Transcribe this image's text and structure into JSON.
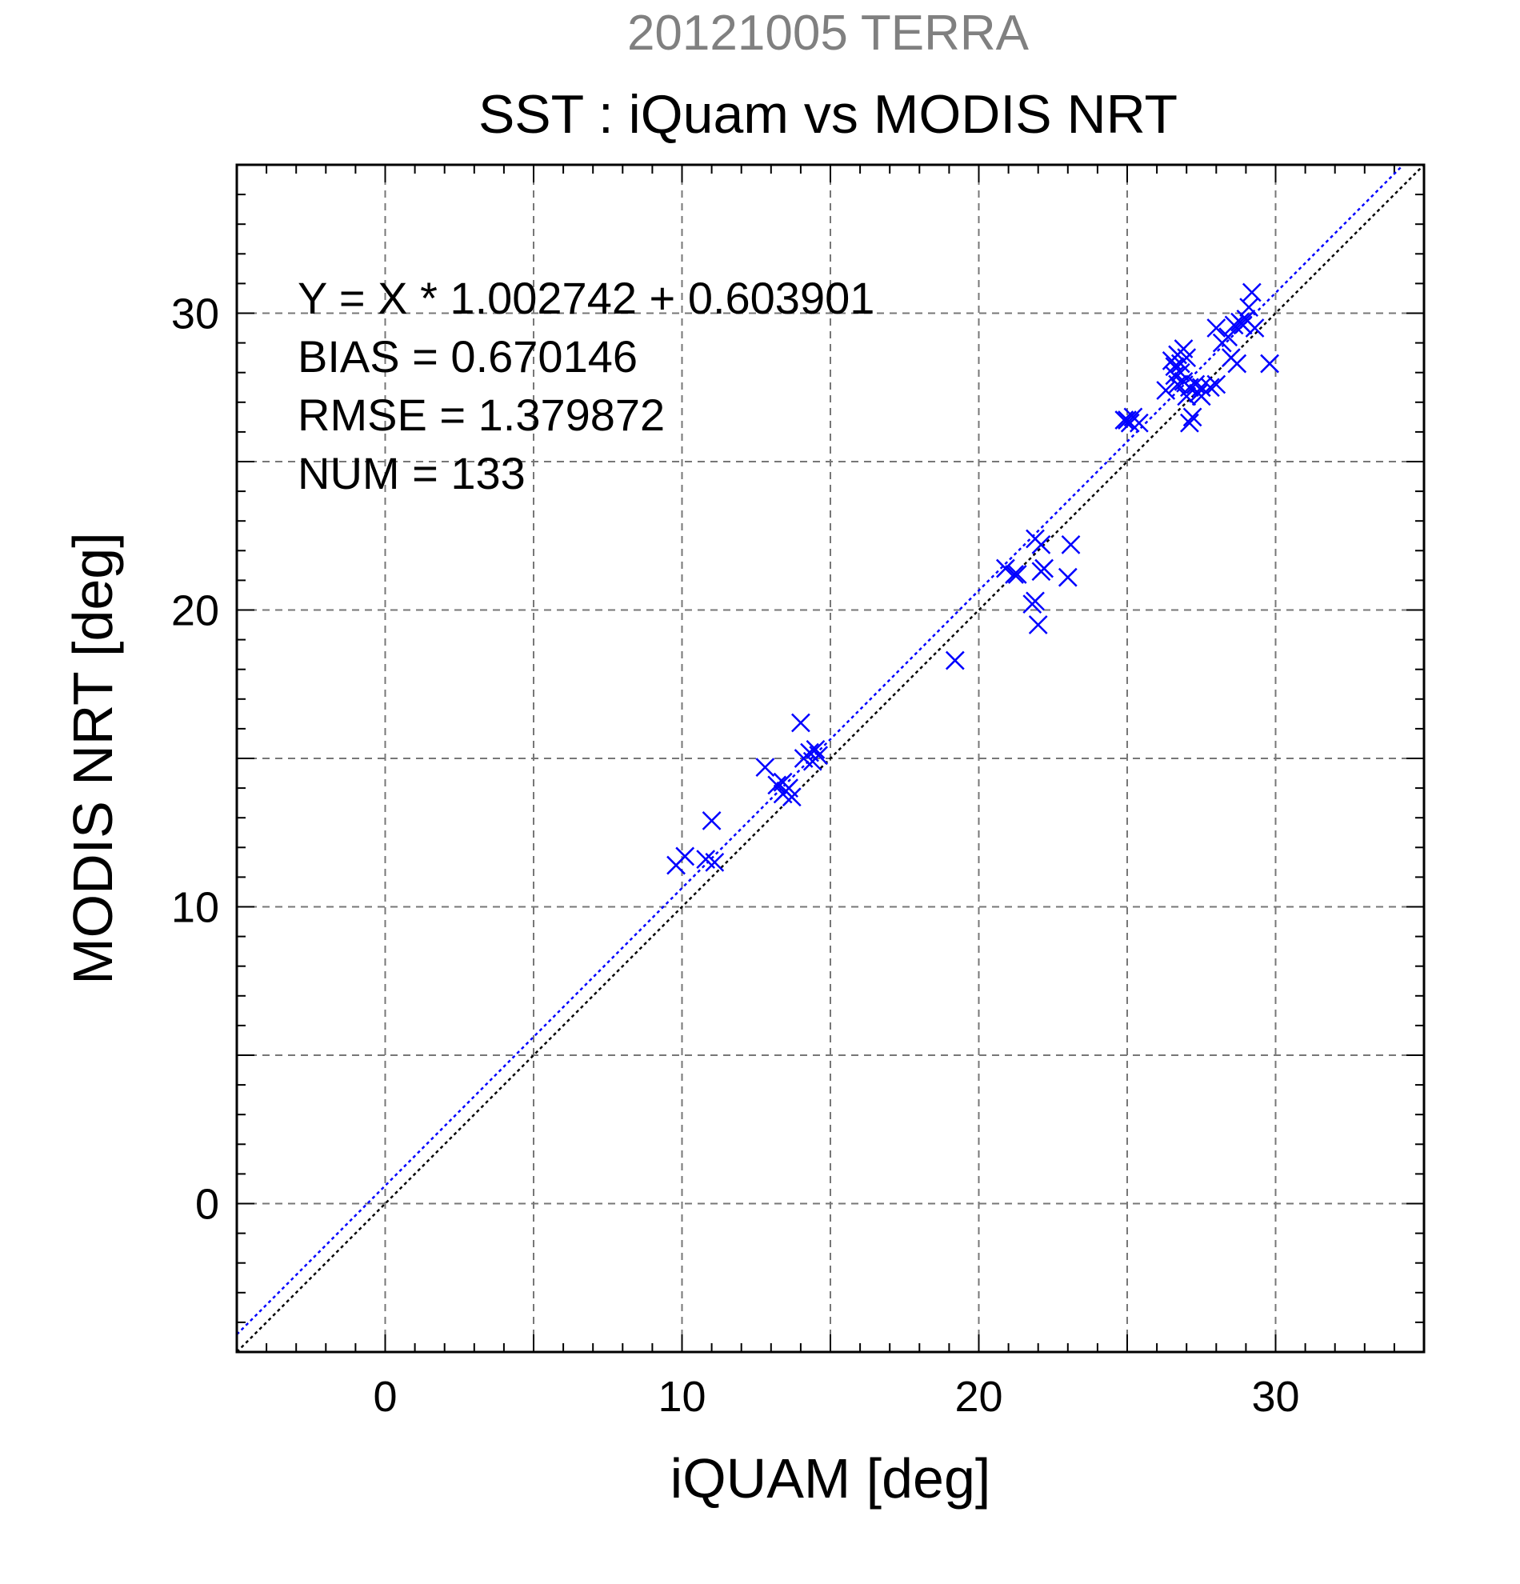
{
  "header": {
    "date_label": "20121005 TERRA",
    "title": "SST : iQuam vs MODIS NRT"
  },
  "chart_data": {
    "type": "scatter",
    "title": "SST : iQuam vs MODIS NRT",
    "subtitle": "20121005 TERRA",
    "xlabel": "iQUAM [deg]",
    "ylabel": "MODIS NRT [deg]",
    "xlim": [
      -5,
      35
    ],
    "ylim": [
      -5,
      35
    ],
    "xticks": [
      0,
      10,
      20,
      30
    ],
    "yticks": [
      0,
      10,
      20,
      30
    ],
    "grid": true,
    "grid_step": 5,
    "minor_step": 1,
    "annotations": [
      "Y = X * 1.002742 + 0.603901",
      "BIAS = 0.670146",
      "RMSE = 1.379872",
      "NUM = 133"
    ],
    "fit_line": {
      "slope": 1.002742,
      "intercept": 0.603901,
      "color": "#0000ff"
    },
    "identity_line": {
      "slope": 1,
      "intercept": 0,
      "color": "#000000"
    },
    "series": [
      {
        "marker": "x",
        "color": "#0000ff",
        "x": [
          9.8,
          10.1,
          10.8,
          11.0,
          11.1,
          12.8,
          13.2,
          13.4,
          13.5,
          13.6,
          13.7,
          13.4,
          14.0,
          14.1,
          14.3,
          14.4,
          14.5,
          14.6,
          19.2,
          20.9,
          21.2,
          21.3,
          21.8,
          21.9,
          22.0,
          21.9,
          22.1,
          22.1,
          22.2,
          23.0,
          23.1,
          24.9,
          25.0,
          25.1,
          25.2,
          25.4,
          26.3,
          26.5,
          26.6,
          26.6,
          26.7,
          26.7,
          26.8,
          26.8,
          26.9,
          26.9,
          27.0,
          27.0,
          27.1,
          27.1,
          27.2,
          27.3,
          27.4,
          27.5,
          27.5,
          27.8,
          28.0,
          28.0,
          28.2,
          28.4,
          28.5,
          28.6,
          28.7,
          28.8,
          28.9,
          29.0,
          29.1,
          29.2,
          29.3,
          29.8
        ],
        "y": [
          11.4,
          11.7,
          11.6,
          12.9,
          11.5,
          14.7,
          14.1,
          13.8,
          13.9,
          14.0,
          13.7,
          14.2,
          16.2,
          15.0,
          15.2,
          14.9,
          15.3,
          15.1,
          18.3,
          21.4,
          21.2,
          21.2,
          20.2,
          20.3,
          19.5,
          22.4,
          22.2,
          21.3,
          21.4,
          21.1,
          22.2,
          26.4,
          26.4,
          26.3,
          26.5,
          26.3,
          27.4,
          28.4,
          27.9,
          28.2,
          27.6,
          28.6,
          28.0,
          28.3,
          28.8,
          27.7,
          27.2,
          28.5,
          26.3,
          27.5,
          26.5,
          27.6,
          27.3,
          27.2,
          27.5,
          27.5,
          29.5,
          27.6,
          29.0,
          29.2,
          28.5,
          29.6,
          28.3,
          29.7,
          29.6,
          29.8,
          30.2,
          30.7,
          29.5,
          28.3
        ]
      }
    ]
  }
}
